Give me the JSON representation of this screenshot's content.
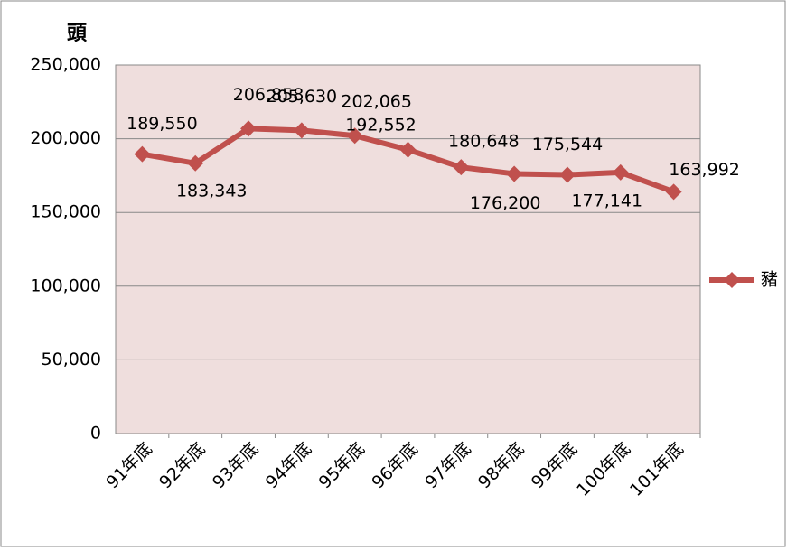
{
  "chart_data": {
    "type": "line",
    "y_label": "頭",
    "categories": [
      "91年底",
      "92年底",
      "93年底",
      "94年底",
      "95年底",
      "96年底",
      "97年底",
      "98年底",
      "99年底",
      "100年底",
      "101年底"
    ],
    "series": [
      {
        "name": "豬",
        "color": "#c0504d",
        "values": [
          189550,
          183343,
          206858,
          205630,
          202065,
          192552,
          180648,
          176200,
          175544,
          177141,
          163992
        ],
        "value_labels": [
          "189,550",
          "183,343",
          "206,858",
          "205,630",
          "202,065",
          "192,552",
          "180,648",
          "176,200",
          "175,544",
          "177,141",
          "163,992"
        ]
      }
    ],
    "ylim": [
      0,
      250000
    ],
    "yticks": [
      0,
      {
        "value": 50000,
        "label": "50,000"
      },
      {
        "value": 100000,
        "label": "100,000"
      },
      {
        "value": 150000,
        "label": "150,000"
      },
      {
        "value": 200000,
        "label": "200,000"
      },
      {
        "value": 250000,
        "label": "250,000"
      }
    ],
    "grid": true,
    "legend": "right",
    "plot_background": "#efdedd"
  }
}
